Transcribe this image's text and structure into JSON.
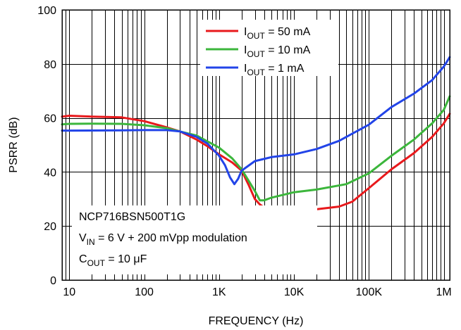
{
  "chart_data": {
    "type": "line",
    "xscale": "log",
    "xlim": [
      8,
      1200000
    ],
    "ylim": [
      0,
      100
    ],
    "grid": true,
    "xlabel": "FREQUENCY (Hz)",
    "ylabel": "PSRR (dB)",
    "x_ticks": [
      {
        "value": 10,
        "label": "10"
      },
      {
        "value": 100,
        "label": "100"
      },
      {
        "value": 1000,
        "label": "1K"
      },
      {
        "value": 10000,
        "label": "10K"
      },
      {
        "value": 100000,
        "label": "100K"
      },
      {
        "value": 1000000,
        "label": "1M"
      }
    ],
    "y_ticks": [
      {
        "value": 0,
        "label": "0"
      },
      {
        "value": 20,
        "label": "20"
      },
      {
        "value": 40,
        "label": "40"
      },
      {
        "value": 60,
        "label": "60"
      },
      {
        "value": 80,
        "label": "80"
      },
      {
        "value": 100,
        "label": "100"
      }
    ],
    "legend_position": "top-center",
    "series": [
      {
        "name": "50 mA",
        "legend_prefix": "I",
        "legend_sub": "OUT",
        "legend_suffix": " = 50 mA",
        "color": "#e8191c",
        "points": [
          [
            8,
            60.5
          ],
          [
            10,
            60.8
          ],
          [
            20,
            60.5
          ],
          [
            50,
            60.2
          ],
          [
            100,
            58.8
          ],
          [
            200,
            56.5
          ],
          [
            300,
            55
          ],
          [
            500,
            52
          ],
          [
            700,
            49.5
          ],
          [
            1000,
            46.5
          ],
          [
            1500,
            43.5
          ],
          [
            2000,
            40.5
          ],
          [
            2500,
            35
          ],
          [
            3000,
            30
          ],
          [
            3500,
            28
          ],
          [
            4000,
            26.8
          ],
          [
            5000,
            25.5
          ],
          [
            6000,
            25.2
          ],
          [
            10000,
            25.5
          ],
          [
            20000,
            26.2
          ],
          [
            40000,
            27.2
          ],
          [
            60000,
            29
          ],
          [
            100000,
            34
          ],
          [
            200000,
            41
          ],
          [
            400000,
            47
          ],
          [
            700000,
            53
          ],
          [
            1000000,
            58
          ],
          [
            1200000,
            61.5
          ]
        ]
      },
      {
        "name": "10 mA",
        "legend_prefix": "I",
        "legend_sub": "OUT",
        "legend_suffix": " = 10 mA",
        "color": "#3cb63c",
        "points": [
          [
            8,
            57.6
          ],
          [
            10,
            57.8
          ],
          [
            20,
            57.9
          ],
          [
            50,
            57.8
          ],
          [
            100,
            57.3
          ],
          [
            200,
            56.2
          ],
          [
            500,
            53.5
          ],
          [
            1000,
            49
          ],
          [
            1500,
            45
          ],
          [
            2000,
            41
          ],
          [
            3000,
            33
          ],
          [
            3500,
            29.5
          ],
          [
            4000,
            29.5
          ],
          [
            5000,
            30.5
          ],
          [
            10000,
            32.5
          ],
          [
            20000,
            33.5
          ],
          [
            50000,
            35.5
          ],
          [
            100000,
            39.5
          ],
          [
            200000,
            46
          ],
          [
            400000,
            52
          ],
          [
            700000,
            58
          ],
          [
            1000000,
            63
          ],
          [
            1200000,
            68
          ]
        ]
      },
      {
        "name": "1 mA",
        "legend_prefix": "I",
        "legend_sub": "OUT",
        "legend_suffix": " = 1 mA",
        "color": "#2244e8",
        "points": [
          [
            8,
            55.3
          ],
          [
            10,
            55.3
          ],
          [
            50,
            55.4
          ],
          [
            100,
            55.5
          ],
          [
            200,
            55.5
          ],
          [
            300,
            55
          ],
          [
            500,
            53
          ],
          [
            700,
            50.5
          ],
          [
            1000,
            46
          ],
          [
            1200,
            42.5
          ],
          [
            1400,
            38
          ],
          [
            1600,
            35.5
          ],
          [
            1800,
            37.5
          ],
          [
            2000,
            40.5
          ],
          [
            3000,
            44
          ],
          [
            5000,
            45.5
          ],
          [
            10000,
            46.5
          ],
          [
            20000,
            48.5
          ],
          [
            40000,
            51.5
          ],
          [
            100000,
            57.5
          ],
          [
            200000,
            64
          ],
          [
            400000,
            69
          ],
          [
            700000,
            74
          ],
          [
            1000000,
            79
          ],
          [
            1200000,
            82.5
          ]
        ]
      }
    ],
    "annotation": {
      "line1": "NCP716BSN500T1G",
      "line2_prefix": "V",
      "line2_sub": "IN",
      "line2_suffix": " = 6 V + 200 mVpp modulation",
      "line3_prefix": "C",
      "line3_sub": "OUT",
      "line3_suffix": " = 10 μF"
    }
  }
}
